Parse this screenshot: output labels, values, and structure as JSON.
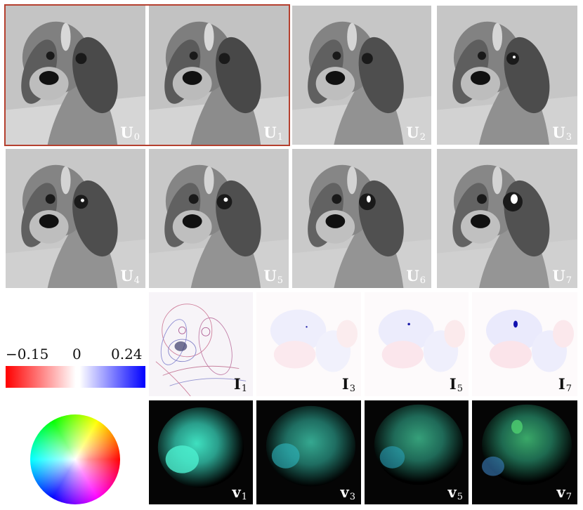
{
  "u_panels": [
    {
      "sym": "U",
      "sub": "0"
    },
    {
      "sym": "U",
      "sub": "1"
    },
    {
      "sym": "U",
      "sub": "2"
    },
    {
      "sym": "U",
      "sub": "3"
    },
    {
      "sym": "U",
      "sub": "4"
    },
    {
      "sym": "U",
      "sub": "5"
    },
    {
      "sym": "U",
      "sub": "6"
    },
    {
      "sym": "U",
      "sub": "7"
    }
  ],
  "i_panels": [
    {
      "sym": "I",
      "sub": "1"
    },
    {
      "sym": "I",
      "sub": "3"
    },
    {
      "sym": "I",
      "sub": "5"
    },
    {
      "sym": "I",
      "sub": "7"
    }
  ],
  "v_panels": [
    {
      "sym": "v",
      "sub": "1"
    },
    {
      "sym": "v",
      "sub": "3"
    },
    {
      "sym": "v",
      "sub": "5"
    },
    {
      "sym": "v",
      "sub": "7"
    }
  ],
  "colorbar": {
    "min_label": "−0.15",
    "mid_label": "0",
    "max_label": "0.24",
    "low_color": "#ff0000",
    "mid_color": "#ffffff",
    "high_color": "#0000ff"
  },
  "highlight_color": "#b5402f"
}
